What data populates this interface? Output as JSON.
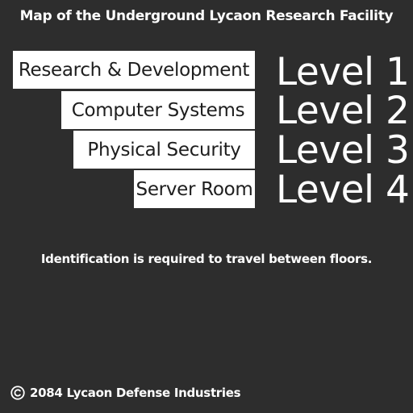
{
  "header": {
    "title": "Map of the Underground Lycaon Research Facility"
  },
  "floors": [
    {
      "department": "Research & Development",
      "level": "Level 1"
    },
    {
      "department": "Computer Systems",
      "level": "Level 2"
    },
    {
      "department": "Physical Security",
      "level": "Level 3"
    },
    {
      "department": "Server Room",
      "level": "Level 4"
    }
  ],
  "notice": "Identification is required to travel between floors.",
  "footer": {
    "icon": "copyright-icon",
    "text": "2084 Lycaon Defense Industries"
  },
  "colors": {
    "background": "#2d2d2d",
    "label_background": "#ffffff",
    "label_text": "#1e1e1e",
    "text": "#ffffff"
  }
}
